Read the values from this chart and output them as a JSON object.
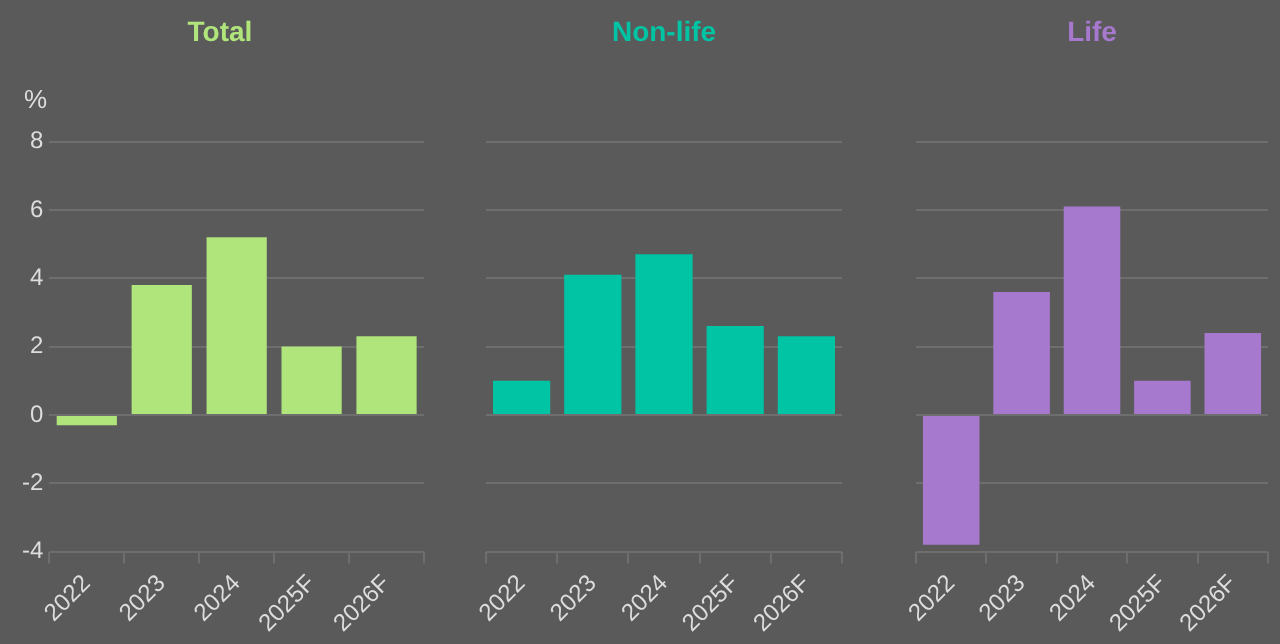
{
  "chart_data": [
    {
      "type": "bar",
      "title": "Total",
      "ylabel": "%",
      "categories": [
        "2022",
        "2023",
        "2024",
        "2025F",
        "2026F"
      ],
      "series": [
        {
          "color": "#b0e57c",
          "values": [
            -0.3,
            3.8,
            5.2,
            2.0,
            2.3
          ]
        }
      ],
      "ylim": [
        -4,
        8
      ],
      "yticks": [
        -4,
        -2,
        0,
        2,
        4,
        6,
        8
      ],
      "grid": "y",
      "legend": false
    },
    {
      "type": "bar",
      "title": "Non-life",
      "categories": [
        "2022",
        "2023",
        "2024",
        "2025F",
        "2026F"
      ],
      "series": [
        {
          "color": "#00c4a4",
          "values": [
            1.0,
            4.1,
            4.7,
            2.6,
            2.3
          ]
        }
      ],
      "ylim": [
        -4,
        8
      ],
      "yticks": [
        -4,
        -2,
        0,
        2,
        4,
        6,
        8
      ],
      "grid": "y",
      "legend": false,
      "tick_labels": "x"
    },
    {
      "type": "bar",
      "title": "Life",
      "categories": [
        "2022",
        "2023",
        "2024",
        "2025F",
        "2026F"
      ],
      "series": [
        {
          "color": "#a679cf",
          "values": [
            -3.8,
            3.6,
            6.1,
            1.0,
            2.4
          ]
        }
      ],
      "ylim": [
        -4,
        8
      ],
      "yticks": [
        -4,
        -2,
        0,
        2,
        4,
        6,
        8
      ],
      "grid": "y",
      "legend": false,
      "tick_labels": "x"
    }
  ]
}
